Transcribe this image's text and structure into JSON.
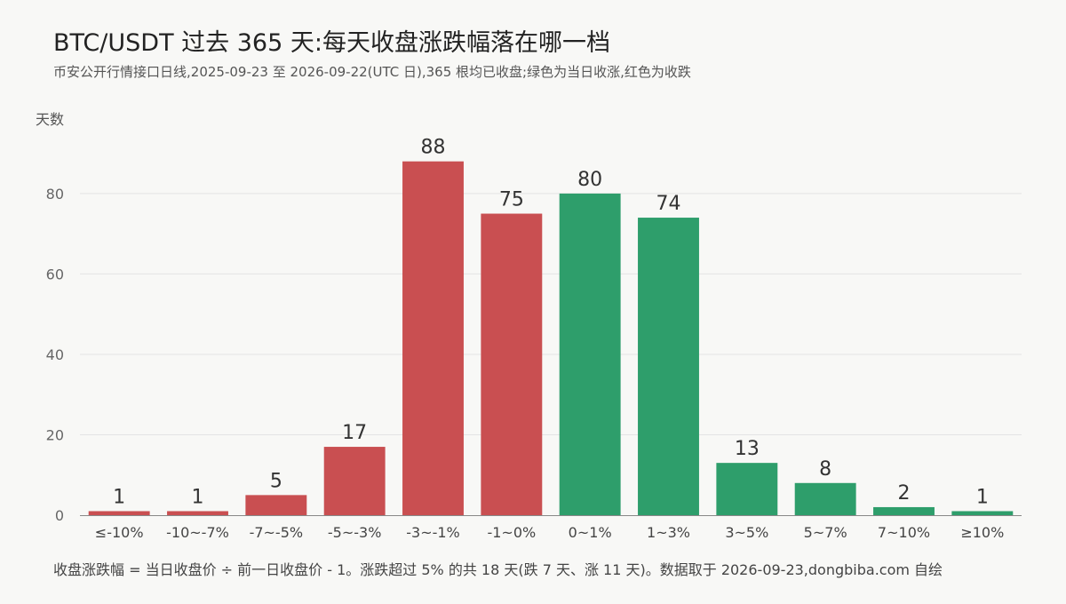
{
  "chart_data": {
    "type": "bar",
    "title": "BTC/USDT 过去 365 天:每天收盘涨跌幅落在哪一档",
    "subtitle": "币安公开行情接口日线,2025-09-23 至 2026-09-22(UTC 日),365 根均已收盘;绿色为当日收涨,红色为收跌",
    "ylabel": "天数",
    "xlabel": "",
    "footer": "收盘涨跌幅 = 当日收盘价 ÷ 前一日收盘价 - 1。涨跌超过 5% 的共 18 天(跌 7 天、涨 11 天)。数据取于 2026-09-23,dongbiba.com 自绘",
    "ylim": [
      0,
      95
    ],
    "yticks": [
      0,
      20,
      40,
      60,
      80
    ],
    "grid": true,
    "categories": [
      "≤-10%",
      "-10~-7%",
      "-7~-5%",
      "-5~-3%",
      "-3~-1%",
      "-1~0%",
      "0~1%",
      "1~3%",
      "3~5%",
      "5~7%",
      "7~10%",
      "≥10%"
    ],
    "values": [
      1,
      1,
      5,
      17,
      88,
      75,
      80,
      74,
      13,
      8,
      2,
      1
    ],
    "bar_colors": [
      "#c94f51",
      "#c94f51",
      "#c94f51",
      "#c94f51",
      "#c94f51",
      "#c94f51",
      "#2e9e6b",
      "#2e9e6b",
      "#2e9e6b",
      "#2e9e6b",
      "#2e9e6b",
      "#2e9e6b"
    ],
    "colors": {
      "down": "#c94f51",
      "up": "#2e9e6b"
    }
  }
}
